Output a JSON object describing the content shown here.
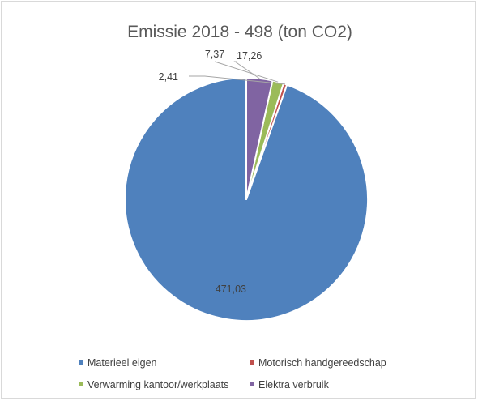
{
  "chart_data": {
    "type": "pie",
    "title": "Emissie 2018 - 498 (ton CO2)",
    "categories": [
      "Materieel eigen",
      "Motorisch handgereedschap",
      "Verwarming kantoor/werkplaats",
      "Elektra verbruik"
    ],
    "values": [
      471.03,
      2.41,
      7.37,
      17.26
    ],
    "data_labels": [
      "471,03",
      "2,41",
      "7,37",
      "17,26"
    ],
    "colors": [
      "#4f81bd",
      "#c0504d",
      "#9bbb59",
      "#8064a2"
    ],
    "legend_position": "bottom",
    "start_angle": "12 o'clock",
    "direction": "counterclockwise"
  }
}
